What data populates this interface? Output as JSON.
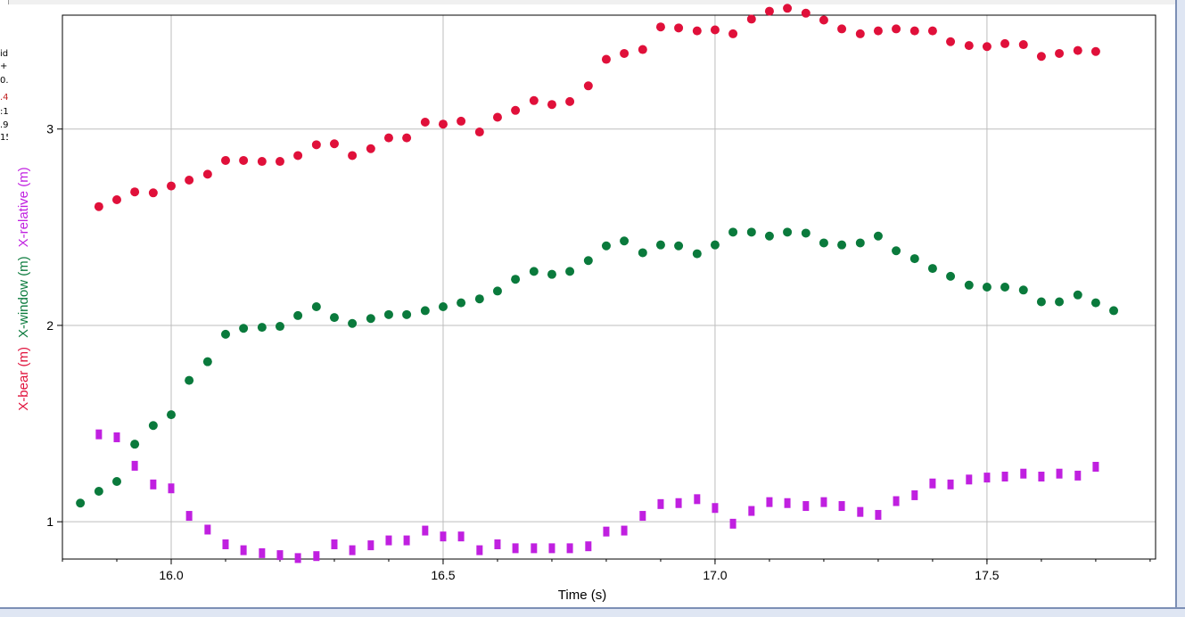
{
  "side_fragments": [
    "id",
    "+",
    "0.",
    ".4",
    ":1",
    ".9",
    "15"
  ],
  "chart_data": {
    "type": "scatter",
    "xlabel": "Time (s)",
    "ylabels": [
      {
        "text": "X-bear (m)",
        "color": "#e0103a"
      },
      {
        "text": "X-window (m)",
        "color": "#0a7a3c"
      },
      {
        "text": "X-relative (m)",
        "color": "#c020e0"
      }
    ],
    "xlim": [
      15.8,
      17.81
    ],
    "ylim": [
      0.81,
      3.58
    ],
    "x_ticks": [
      16.0,
      16.5,
      17.0,
      17.5
    ],
    "x_tick_labels": [
      "16.0",
      "16.5",
      "17.0",
      "17.5"
    ],
    "y_ticks": [
      1,
      2,
      3
    ],
    "y_tick_labels": [
      "1",
      "2",
      "3"
    ],
    "grid": true,
    "series": [
      {
        "marker": "circle",
        "color": "#e0103a",
        "x": [
          15.867,
          15.9,
          15.933,
          15.967,
          16.0,
          16.033,
          16.067,
          16.1,
          16.133,
          16.167,
          16.2,
          16.233,
          16.267,
          16.3,
          16.333,
          16.367,
          16.4,
          16.433,
          16.467,
          16.5,
          16.533,
          16.567,
          16.6,
          16.633,
          16.667,
          16.7,
          16.733,
          16.767,
          16.8,
          16.833,
          16.867,
          16.9,
          16.933,
          16.967,
          17.0,
          17.033,
          17.067,
          17.1,
          17.133,
          17.167,
          17.2,
          17.233,
          17.267,
          17.3,
          17.333,
          17.367,
          17.4,
          17.433,
          17.467,
          17.5,
          17.533,
          17.567,
          17.6,
          17.633,
          17.667,
          17.7
        ],
        "y": [
          2.605,
          2.64,
          2.68,
          2.675,
          2.71,
          2.74,
          2.77,
          2.84,
          2.84,
          2.835,
          2.835,
          2.865,
          2.92,
          2.925,
          2.865,
          2.9,
          2.955,
          2.955,
          3.035,
          3.025,
          3.04,
          2.985,
          3.06,
          3.095,
          3.145,
          3.125,
          3.14,
          3.22,
          3.355,
          3.385,
          3.405,
          3.52,
          3.515,
          3.5,
          3.505,
          3.485,
          3.56,
          3.6,
          3.615,
          3.59,
          3.555,
          3.51,
          3.485,
          3.5,
          3.51,
          3.5,
          3.5,
          3.445,
          3.425,
          3.42,
          3.435,
          3.43,
          3.37,
          3.385,
          3.4,
          3.395
        ]
      },
      {
        "marker": "circle",
        "color": "#0a7a3c",
        "x": [
          15.833,
          15.867,
          15.9,
          15.933,
          15.967,
          16.0,
          16.033,
          16.067,
          16.1,
          16.133,
          16.167,
          16.2,
          16.233,
          16.267,
          16.3,
          16.333,
          16.367,
          16.4,
          16.433,
          16.467,
          16.5,
          16.533,
          16.567,
          16.6,
          16.633,
          16.667,
          16.7,
          16.733,
          16.767,
          16.8,
          16.833,
          16.867,
          16.9,
          16.933,
          16.967,
          17.0,
          17.033,
          17.067,
          17.1,
          17.133,
          17.167,
          17.2,
          17.233,
          17.267,
          17.3,
          17.333,
          17.367,
          17.4,
          17.433,
          17.467,
          17.5,
          17.533,
          17.567,
          17.6,
          17.633,
          17.667,
          17.7,
          17.733
        ],
        "y": [
          1.095,
          1.155,
          1.205,
          1.395,
          1.49,
          1.545,
          1.72,
          1.815,
          1.955,
          1.985,
          1.99,
          1.995,
          2.05,
          2.095,
          2.04,
          2.01,
          2.035,
          2.055,
          2.055,
          2.075,
          2.095,
          2.115,
          2.135,
          2.175,
          2.235,
          2.275,
          2.26,
          2.275,
          2.33,
          2.405,
          2.43,
          2.37,
          2.41,
          2.405,
          2.365,
          2.41,
          2.475,
          2.475,
          2.455,
          2.475,
          2.47,
          2.42,
          2.41,
          2.42,
          2.455,
          2.38,
          2.34,
          2.29,
          2.25,
          2.205,
          2.195,
          2.195,
          2.18,
          2.12,
          2.12,
          2.155,
          2.115,
          2.075
        ]
      },
      {
        "marker": "bar",
        "color": "#c020e0",
        "x": [
          15.867,
          15.9,
          15.933,
          15.967,
          16.0,
          16.033,
          16.067,
          16.1,
          16.133,
          16.167,
          16.2,
          16.233,
          16.267,
          16.3,
          16.333,
          16.367,
          16.4,
          16.433,
          16.467,
          16.5,
          16.533,
          16.567,
          16.6,
          16.633,
          16.667,
          16.7,
          16.733,
          16.767,
          16.8,
          16.833,
          16.867,
          16.9,
          16.933,
          16.967,
          17.0,
          17.033,
          17.067,
          17.1,
          17.133,
          17.167,
          17.2,
          17.233,
          17.267,
          17.3,
          17.333,
          17.367,
          17.4,
          17.433,
          17.467,
          17.5,
          17.533,
          17.567,
          17.6,
          17.633,
          17.667,
          17.7
        ],
        "y": [
          1.445,
          1.43,
          1.285,
          1.19,
          1.17,
          1.03,
          0.96,
          0.885,
          0.855,
          0.84,
          0.83,
          0.815,
          0.825,
          0.885,
          0.855,
          0.88,
          0.905,
          0.905,
          0.955,
          0.925,
          0.925,
          0.855,
          0.885,
          0.865,
          0.865,
          0.865,
          0.865,
          0.875,
          0.95,
          0.955,
          1.03,
          1.09,
          1.095,
          1.115,
          1.07,
          0.99,
          1.055,
          1.1,
          1.095,
          1.08,
          1.1,
          1.08,
          1.05,
          1.035,
          1.105,
          1.135,
          1.195,
          1.19,
          1.215,
          1.225,
          1.23,
          1.245,
          1.23,
          1.245,
          1.235,
          1.28
        ]
      }
    ]
  }
}
